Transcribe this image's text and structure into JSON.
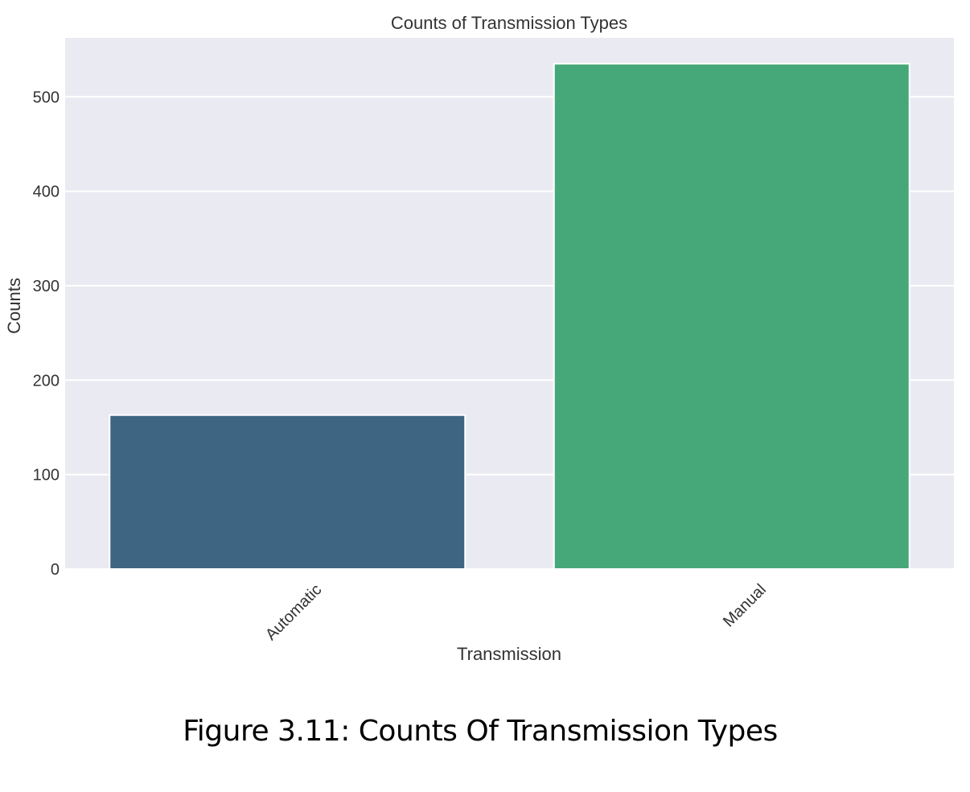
{
  "chart_data": {
    "type": "bar",
    "title": "Counts of Transmission Types",
    "xlabel": "Transmission",
    "ylabel": "Counts",
    "categories": [
      "Automatic",
      "Manual"
    ],
    "values": [
      163,
      535
    ],
    "ylim": [
      0,
      560
    ],
    "yticks": [
      0,
      100,
      200,
      300,
      400,
      500
    ],
    "grid": true,
    "legend": "none",
    "bar_colors": [
      "#3e6683",
      "#46a878"
    ],
    "background": "#eaeaf2",
    "grid_color": "#ffffff"
  },
  "figure_caption": "Figure 3.11: Counts Of Transmission Types"
}
